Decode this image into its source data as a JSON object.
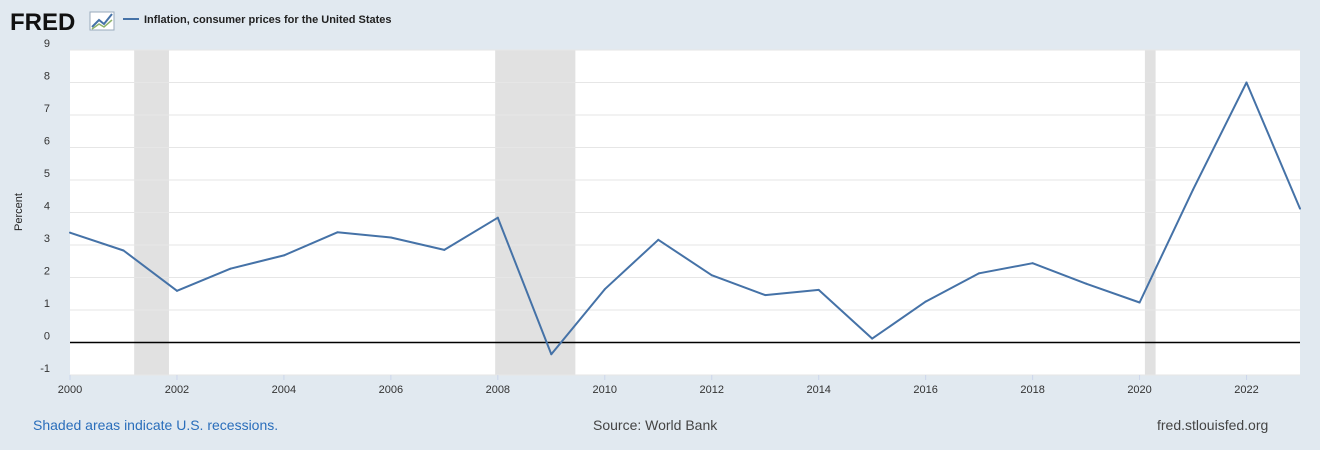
{
  "logo": {
    "text": "FRED"
  },
  "colors": {
    "background": "#e1e9f0",
    "plot": "#ffffff",
    "series": "#4572a7",
    "recession": "#e1e1e1",
    "zero_line": "#000000"
  },
  "chart_data": {
    "type": "line",
    "title": "",
    "xlabel": "",
    "ylabel": "Percent",
    "xlim": [
      2000,
      2023
    ],
    "ylim": [
      -1,
      9
    ],
    "x_ticks": [
      2000,
      2002,
      2004,
      2006,
      2008,
      2010,
      2012,
      2014,
      2016,
      2018,
      2020,
      2022
    ],
    "x_tick_labels": [
      "2000",
      "2002",
      "2004",
      "2006",
      "2008",
      "2010",
      "2012",
      "2014",
      "2016",
      "2018",
      "2020",
      "2022"
    ],
    "y_ticks": [
      -1,
      0,
      1,
      2,
      3,
      4,
      5,
      6,
      7,
      8,
      9
    ],
    "y_tick_labels": [
      "-1",
      "0",
      "1",
      "2",
      "3",
      "4",
      "5",
      "6",
      "7",
      "8",
      "9"
    ],
    "grid": true,
    "legend_position": "top-left",
    "series": [
      {
        "name": "Inflation, consumer prices for the United States",
        "x": [
          2000,
          2001,
          2002,
          2003,
          2004,
          2005,
          2006,
          2007,
          2008,
          2009,
          2010,
          2011,
          2012,
          2013,
          2014,
          2015,
          2016,
          2017,
          2018,
          2019,
          2020,
          2021,
          2022,
          2023
        ],
        "y": [
          3.38,
          2.83,
          1.59,
          2.27,
          2.68,
          3.39,
          3.23,
          2.85,
          3.84,
          -0.36,
          1.64,
          3.16,
          2.07,
          1.46,
          1.62,
          0.12,
          1.26,
          2.13,
          2.44,
          1.81,
          1.23,
          4.7,
          8.0,
          4.12
        ]
      }
    ],
    "recessions": [
      {
        "start": 2001.2,
        "end": 2001.85
      },
      {
        "start": 2007.95,
        "end": 2009.45
      },
      {
        "start": 2020.1,
        "end": 2020.3
      }
    ]
  },
  "footer": {
    "left": "Shaded areas indicate U.S. recessions.",
    "center": "Source: World Bank",
    "right": "fred.stlouisfed.org"
  }
}
